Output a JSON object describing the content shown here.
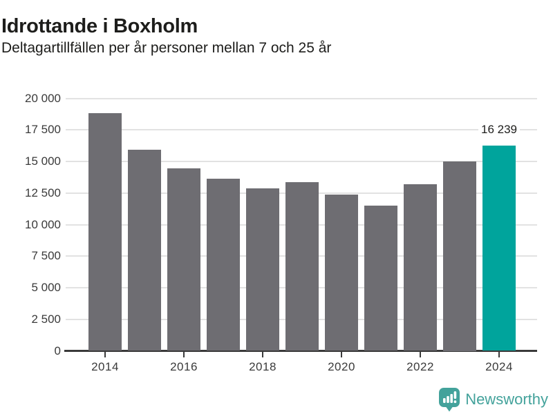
{
  "chart_data": {
    "type": "bar",
    "title": "Idrottande i Boxholm",
    "subtitle": "Deltagartillfällen per år personer mellan 7 och 25 år",
    "categories": [
      "2014",
      "2015",
      "2016",
      "2017",
      "2018",
      "2019",
      "2020",
      "2021",
      "2022",
      "2023",
      "2024"
    ],
    "values": [
      18800,
      15950,
      14450,
      13650,
      12850,
      13350,
      12350,
      11500,
      13200,
      15000,
      16239
    ],
    "highlight_index": 10,
    "annotation": {
      "text": "16 239",
      "category": "2024"
    },
    "xlabel": "",
    "ylabel": "",
    "ylim": [
      0,
      20000
    ],
    "y_tick_labels": [
      "0",
      "2 500",
      "5 000",
      "7 500",
      "10 000",
      "12 500",
      "15 000",
      "17 500",
      "20 000"
    ],
    "x_tick_labels": [
      "2014",
      "2016",
      "2018",
      "2020",
      "2022",
      "2024"
    ],
    "grid": "horizontal",
    "legend": "none",
    "colors": {
      "bar": "#6e6d72",
      "highlight": "#00a49c",
      "gridline": "#e2e2e2",
      "axis": "#3a3a3a",
      "tick_label": "#3a3a3a",
      "text": "#1d1d1b"
    }
  },
  "footer": {
    "brand": "Newsworthy",
    "logo_color": "#43a29b"
  }
}
